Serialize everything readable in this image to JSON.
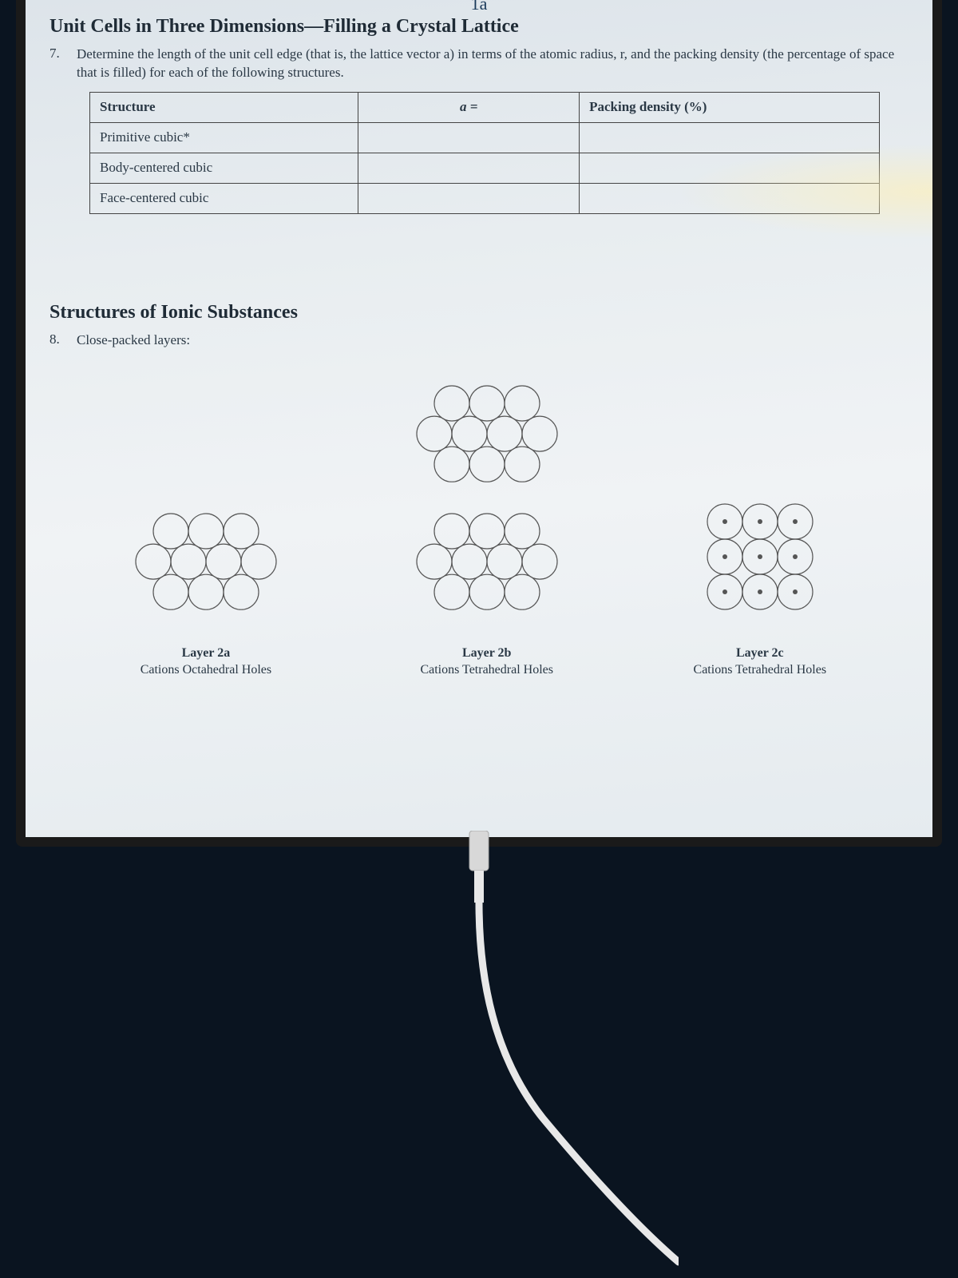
{
  "handwritten": "1a",
  "section1": {
    "title": "Unit Cells in Three Dimensions—Filling a Crystal Lattice",
    "q_num": "7.",
    "q_text": "Determine the length of the unit cell edge (that is, the lattice vector a) in terms of the atomic radius, r, and the packing density (the percentage of space that is filled) for each of the following structures."
  },
  "table": {
    "headers": [
      "Structure",
      "a =",
      "Packing density (%)"
    ],
    "rows": [
      [
        "Primitive cubic*",
        "",
        ""
      ],
      [
        "Body-centered cubic",
        "",
        ""
      ],
      [
        "Face-centered cubic",
        "",
        ""
      ]
    ]
  },
  "section2": {
    "title": "Structures of Ionic Substances",
    "q_num": "8.",
    "q_text": "Close-packed layers:"
  },
  "diagrams": {
    "circle_stroke": "#555",
    "circle_fill": "none",
    "r": 22,
    "dot_r": 3,
    "cols": [
      {
        "id": "layer-2a",
        "label1": "Layer 2a",
        "label2": "Cations Octahedral Holes",
        "stacks": [
          "hex"
        ]
      },
      {
        "id": "layer-2b",
        "label1": "Layer 2b",
        "label2": "Cations Tetrahedral Holes",
        "stacks": [
          "hex",
          "hex"
        ]
      },
      {
        "id": "layer-2c",
        "label1": "Layer 2c",
        "label2": "Cations Tetrahedral Holes",
        "stacks": [
          "grid_dots"
        ]
      }
    ]
  },
  "colors": {
    "page_bg": "#0a1420",
    "paper_bg": "#e8edf0",
    "text": "#2a3845",
    "border": "#444"
  }
}
